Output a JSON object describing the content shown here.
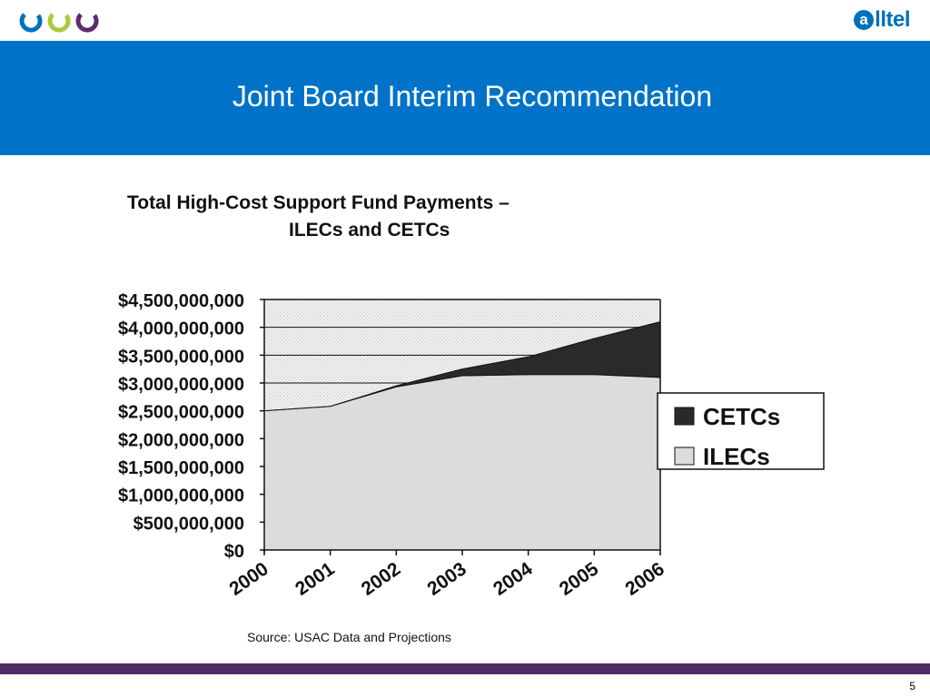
{
  "header": {
    "logo_left_icon": "three-circles-icon",
    "brand_mark": "a",
    "brand_text": "lltel",
    "colors": {
      "circle1": "#0071bc",
      "circle2": "#a9c93a",
      "circle3": "#5c2a6e"
    }
  },
  "slide": {
    "title": "Joint Board Interim Recommendation",
    "page_number": "5",
    "banner_color": "#0073c8",
    "footer_color": "#4d2d64"
  },
  "chart_data": {
    "type": "area",
    "stacked": true,
    "title_line1": "Total High-Cost Support Fund Payments –",
    "title_line2": "ILECs and CETCs",
    "categories": [
      "2000",
      "2001",
      "2002",
      "2003",
      "2004",
      "2005",
      "2006"
    ],
    "series": [
      {
        "name": "ILECs",
        "values": [
          2500000000,
          2580000000,
          2930000000,
          3130000000,
          3150000000,
          3150000000,
          3100000000
        ],
        "color": "#dcdcdc"
      },
      {
        "name": "CETCs",
        "values": [
          0,
          0,
          20000000,
          120000000,
          320000000,
          650000000,
          1000000000
        ],
        "color": "#2a2a2a"
      }
    ],
    "ylim": [
      0,
      4500000000
    ],
    "yticks": [
      "$0",
      "$500,000,000",
      "$1,000,000,000",
      "$1,500,000,000",
      "$2,000,000,000",
      "$2,500,000,000",
      "$3,000,000,000",
      "$3,500,000,000",
      "$4,000,000,000",
      "$4,500,000,000"
    ],
    "grid": true,
    "legend_position": "right",
    "legend": [
      "CETCs",
      "ILECs"
    ],
    "source": "Source:  USAC Data and Projections"
  }
}
